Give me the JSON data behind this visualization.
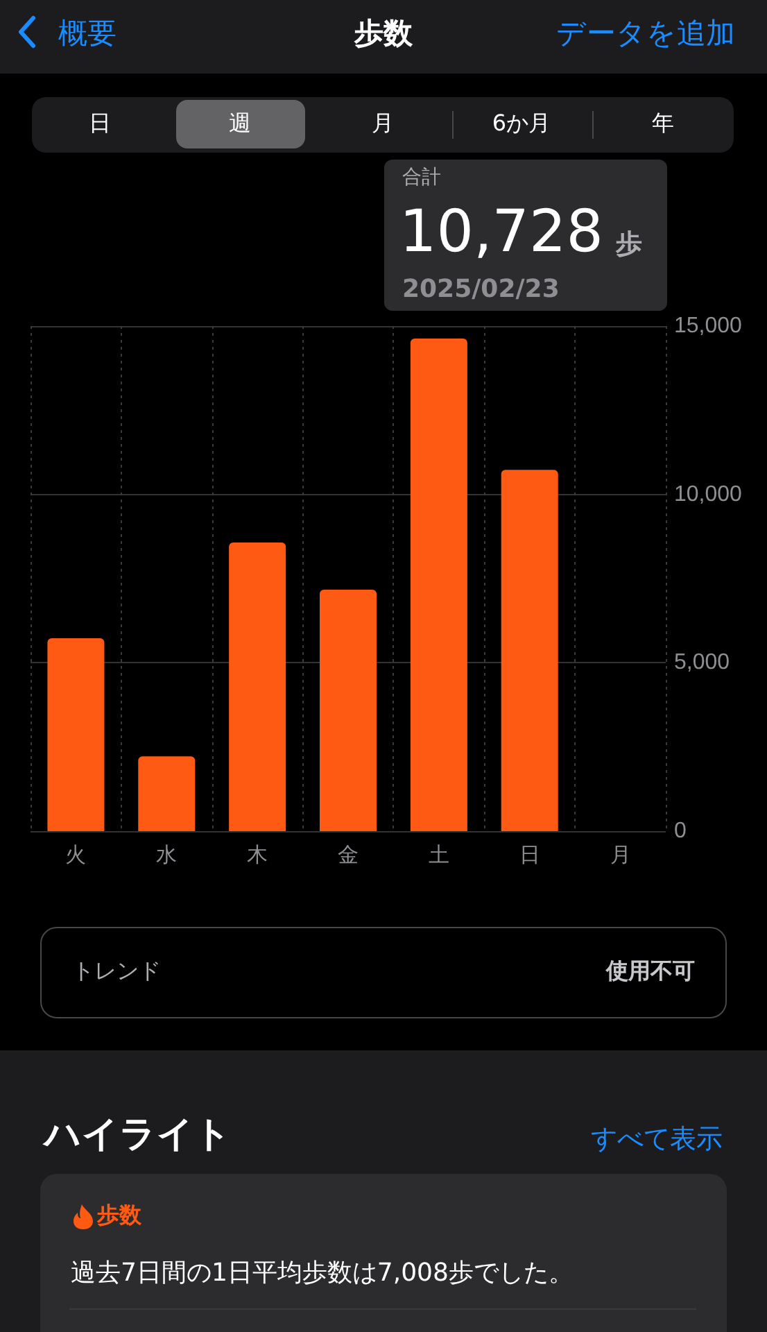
{
  "chart_data": {
    "type": "bar",
    "title": "歩数",
    "categories": [
      "火",
      "水",
      "木",
      "金",
      "土",
      "日",
      "月"
    ],
    "values": [
      5730,
      2220,
      8570,
      7170,
      14630,
      10728,
      null
    ],
    "color": "#ff5a14",
    "ylim": [
      0,
      15000
    ],
    "yticks": [
      {
        "value": 0,
        "label": "0"
      },
      {
        "value": 5000,
        "label": "5,000"
      },
      {
        "value": 10000,
        "label": "10,000"
      },
      {
        "value": 15000,
        "label": "15,000"
      }
    ],
    "grid": true,
    "annotations": [
      "概要",
      "データを追加",
      "日",
      "週",
      "月",
      "6か月",
      "年",
      "合計",
      "10,728",
      "歩",
      "2025/02/23",
      "トレンド",
      "使用不可",
      "ハイライト",
      "すべて表示",
      "歩数",
      "過去7日間の1日平均歩数は7,008歩でした。"
    ]
  }
}
